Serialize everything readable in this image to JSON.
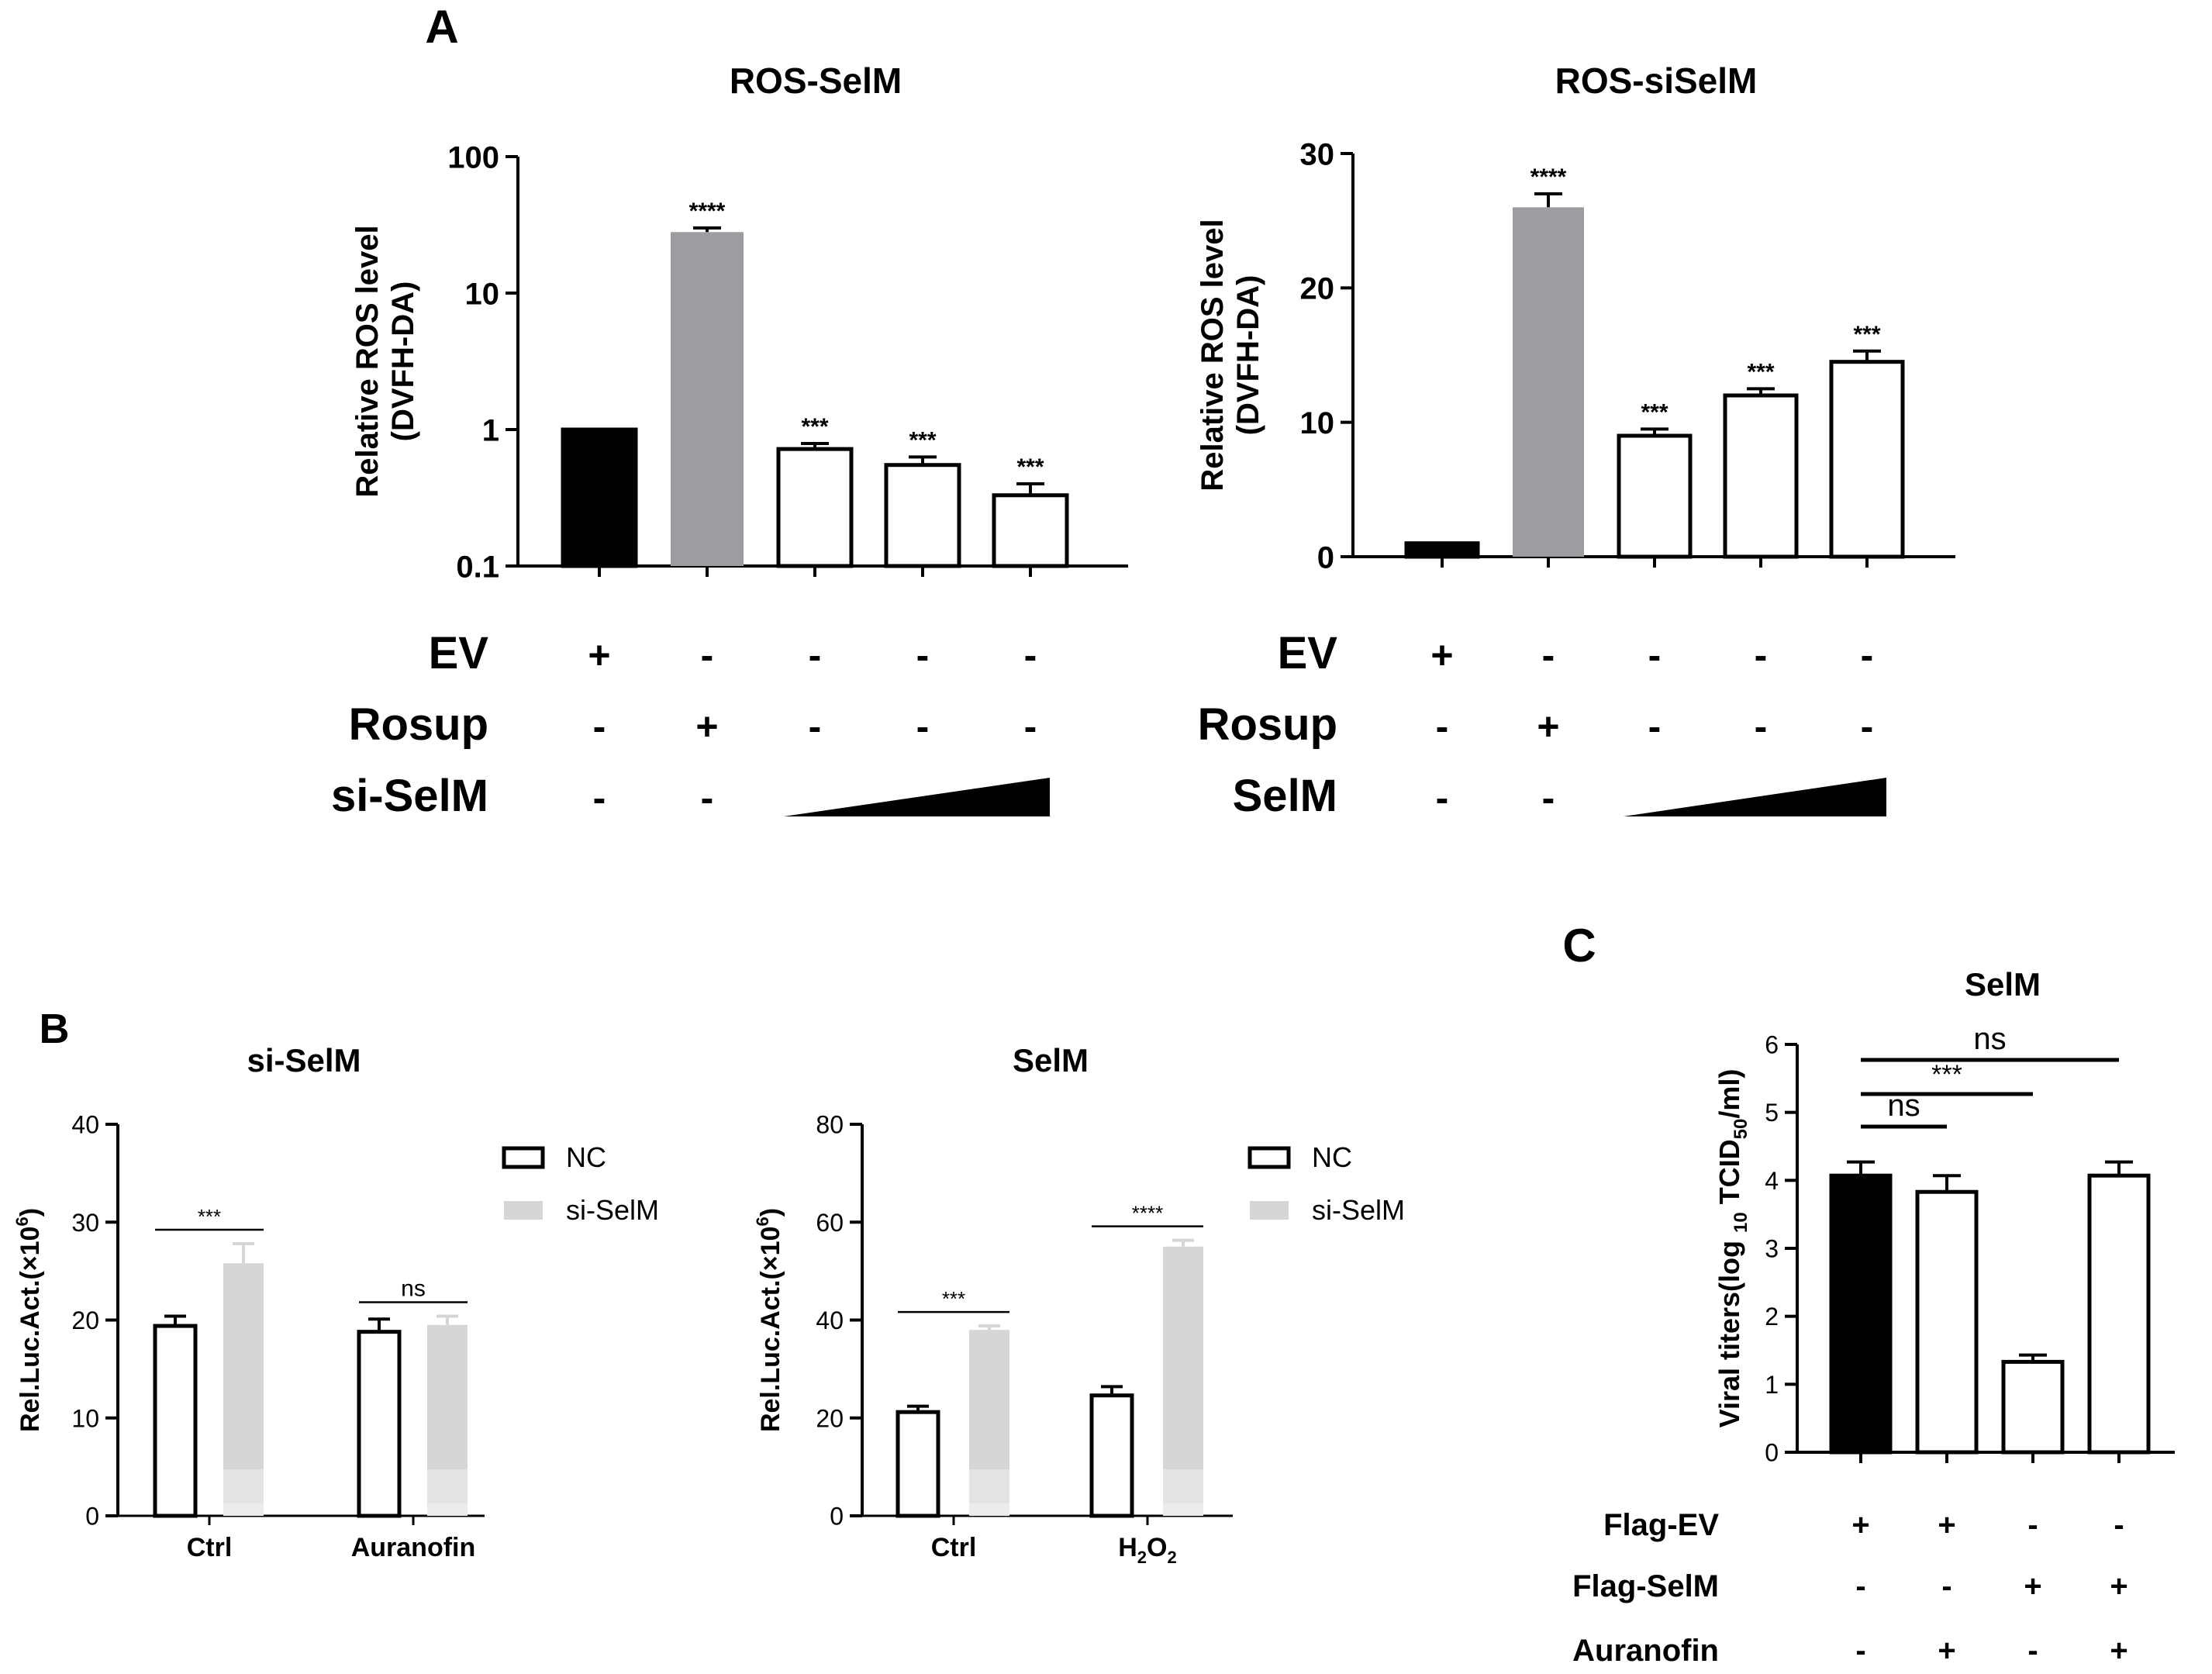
{
  "colors": {
    "black": "#000000",
    "grey": "#9d9da1",
    "light_grey": "#d6d6d6",
    "white": "#ffffff"
  },
  "chart_data": [
    {
      "id": "A1",
      "panel_label": "A",
      "type": "bar",
      "title": "ROS-SelM",
      "ylabel": "Relative ROS level",
      "ylabel2": "(DVFH-DA)",
      "yscale": "log",
      "ylim": [
        0.1,
        100
      ],
      "yticks": [
        0.1,
        1,
        10,
        100
      ],
      "ytick_labels": [
        "0.1",
        "1",
        "10",
        "100"
      ],
      "values": [
        1.0,
        28,
        0.72,
        0.55,
        0.33
      ],
      "errors": [
        0,
        2,
        0.07,
        0.08,
        0.07
      ],
      "fills": [
        "black",
        "grey",
        "white",
        "white",
        "white"
      ],
      "significance": [
        "",
        "****",
        "***",
        "***",
        "***"
      ],
      "conditions": [
        {
          "name": "EV",
          "marks": [
            "+",
            "-",
            "-",
            "-",
            "-"
          ]
        },
        {
          "name": "Rosup",
          "marks": [
            "-",
            "+",
            "-",
            "-",
            "-"
          ]
        },
        {
          "name": "si-SelM",
          "marks": [
            "-",
            "-"
          ],
          "gradient": true
        }
      ]
    },
    {
      "id": "A2",
      "type": "bar",
      "title": "ROS-siSelM",
      "ylabel": "Relative ROS level",
      "ylabel2": "(DVFH-DA)",
      "yscale": "linear",
      "ylim": [
        0,
        30
      ],
      "yticks": [
        0,
        10,
        20,
        30
      ],
      "ytick_labels": [
        "0",
        "10",
        "20",
        "30"
      ],
      "values": [
        1.0,
        26,
        9.0,
        12.0,
        14.5
      ],
      "errors": [
        0,
        1.0,
        0.5,
        0.5,
        0.8
      ],
      "fills": [
        "black",
        "grey",
        "white",
        "white",
        "white"
      ],
      "significance": [
        "",
        "****",
        "***",
        "***",
        "***"
      ],
      "conditions": [
        {
          "name": "EV",
          "marks": [
            "+",
            "-",
            "-",
            "-",
            "-"
          ]
        },
        {
          "name": "Rosup",
          "marks": [
            "-",
            "+",
            "-",
            "-",
            "-"
          ]
        },
        {
          "name": "SelM",
          "marks": [
            "-",
            "-"
          ],
          "gradient": true
        }
      ]
    },
    {
      "id": "B1",
      "panel_label": "B",
      "type": "bar",
      "title": "si-SelM",
      "ylabel": "Rel.Luc.Act.(×10",
      "ylabel_sup": "6",
      "ylabel_end": ")",
      "yscale": "linear",
      "ylim": [
        0,
        40
      ],
      "yticks": [
        0,
        10,
        20,
        30,
        40
      ],
      "ytick_labels": [
        "0",
        "10",
        "20",
        "30",
        "40"
      ],
      "categories": [
        {
          "text": "Ctrl"
        },
        {
          "text": "Auranofin"
        }
      ],
      "series": [
        {
          "name": "NC",
          "fill": "white",
          "values": [
            19.4,
            18.8
          ],
          "errors": [
            1.0,
            1.3
          ]
        },
        {
          "name": "si-SelM",
          "fill": "light_grey",
          "values": [
            25.8,
            19.5
          ],
          "errors": [
            2.0,
            0.9
          ]
        }
      ],
      "significance": [
        {
          "category": 0,
          "text": "***"
        },
        {
          "category": 1,
          "text": "ns"
        }
      ]
    },
    {
      "id": "B2",
      "type": "bar",
      "title": "SelM",
      "ylabel": "Rel.Luc.Act.(×10",
      "ylabel_sup": "6",
      "ylabel_end": ")",
      "yscale": "linear",
      "ylim": [
        0,
        80
      ],
      "yticks": [
        0,
        20,
        40,
        60,
        80
      ],
      "ytick_labels": [
        "0",
        "20",
        "40",
        "60",
        "80"
      ],
      "categories": [
        {
          "text": "Ctrl"
        },
        {
          "text": "H",
          "sub1": "2",
          "mid": "O",
          "sub2": "2"
        }
      ],
      "series": [
        {
          "name": "NC",
          "fill": "white",
          "values": [
            21.2,
            24.6
          ],
          "errors": [
            1.2,
            1.8
          ]
        },
        {
          "name": "si-SelM",
          "fill": "light_grey",
          "values": [
            38.0,
            55.0
          ],
          "errors": [
            0.8,
            1.3
          ]
        }
      ],
      "significance": [
        {
          "category": 0,
          "text": "***"
        },
        {
          "category": 1,
          "text": "****"
        }
      ]
    },
    {
      "id": "C",
      "panel_label": "C",
      "type": "bar",
      "title": "SelM",
      "ylabel": "Viral titers(log ",
      "ylabel_sub1": "10",
      "ylabel_mid": " TCID",
      "ylabel_sub2": "50",
      "ylabel_end": "/ml)",
      "yscale": "linear",
      "ylim": [
        0,
        6
      ],
      "yticks": [
        0,
        1,
        2,
        3,
        4,
        5,
        6
      ],
      "ytick_labels": [
        "0",
        "1",
        "2",
        "3",
        "4",
        "5",
        "6"
      ],
      "values": [
        4.07,
        3.83,
        1.33,
        4.07
      ],
      "errors": [
        0.2,
        0.24,
        0.1,
        0.2
      ],
      "fills": [
        "black",
        "white",
        "white",
        "white"
      ],
      "comparisons": [
        {
          "from": 0,
          "to": 1,
          "text": "ns"
        },
        {
          "from": 0,
          "to": 2,
          "text": "***"
        },
        {
          "from": 0,
          "to": 3,
          "text": "ns"
        }
      ],
      "conditions": [
        {
          "name": "Flag-EV",
          "marks": [
            "+",
            "+",
            "-",
            "-"
          ]
        },
        {
          "name": "Flag-SelM",
          "marks": [
            "-",
            "-",
            "+",
            "+"
          ]
        },
        {
          "name": "Auranofin",
          "marks": [
            "-",
            "+",
            "-",
            "+"
          ]
        }
      ]
    }
  ]
}
